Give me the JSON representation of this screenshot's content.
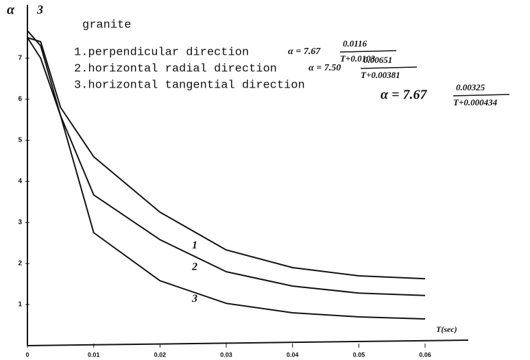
{
  "chart_data": {
    "type": "line",
    "title": "granite",
    "y_label": "α",
    "x_label": "T(sec)",
    "x": [
      0,
      0.002,
      0.005,
      0.01,
      0.02,
      0.03,
      0.04,
      0.05,
      0.06
    ],
    "series": [
      {
        "name": "1.perpendicular direction",
        "color": "#111111",
        "values": [
          7.5,
          7.4,
          5.8,
          4.6,
          3.25,
          2.33,
          1.9,
          1.7,
          1.63
        ]
      },
      {
        "name": "2.horizontal radial direction",
        "color": "#111111",
        "values": [
          7.5,
          7.0,
          5.6,
          3.67,
          2.58,
          1.8,
          1.45,
          1.28,
          1.22
        ]
      },
      {
        "name": "3.horizontal tangential direction",
        "color": "#111111",
        "values": [
          7.67,
          7.3,
          5.6,
          2.75,
          1.58,
          1.03,
          0.8,
          0.7,
          0.65
        ]
      }
    ],
    "curve_labels": [
      "1",
      "2",
      "3"
    ],
    "corner_label": "3",
    "formulas": [
      {
        "prefix": "α = 7.67",
        "numerator": "0.0116",
        "denominator": "T+0.0103"
      },
      {
        "prefix": "α = 7.50",
        "numerator": "0.00651",
        "denominator": "T+0.00381"
      },
      {
        "prefix": "α = 7.67",
        "numerator": "0.00325",
        "denominator": "T+0.000434"
      }
    ],
    "xlim": [
      0,
      0.066
    ],
    "ylim": [
      0,
      8.3
    ],
    "xticks": [
      0,
      0.01,
      0.02,
      0.03,
      0.04,
      0.05,
      0.06
    ],
    "yticks": [
      1,
      2,
      3,
      4,
      5,
      6,
      7
    ],
    "grid": false
  }
}
